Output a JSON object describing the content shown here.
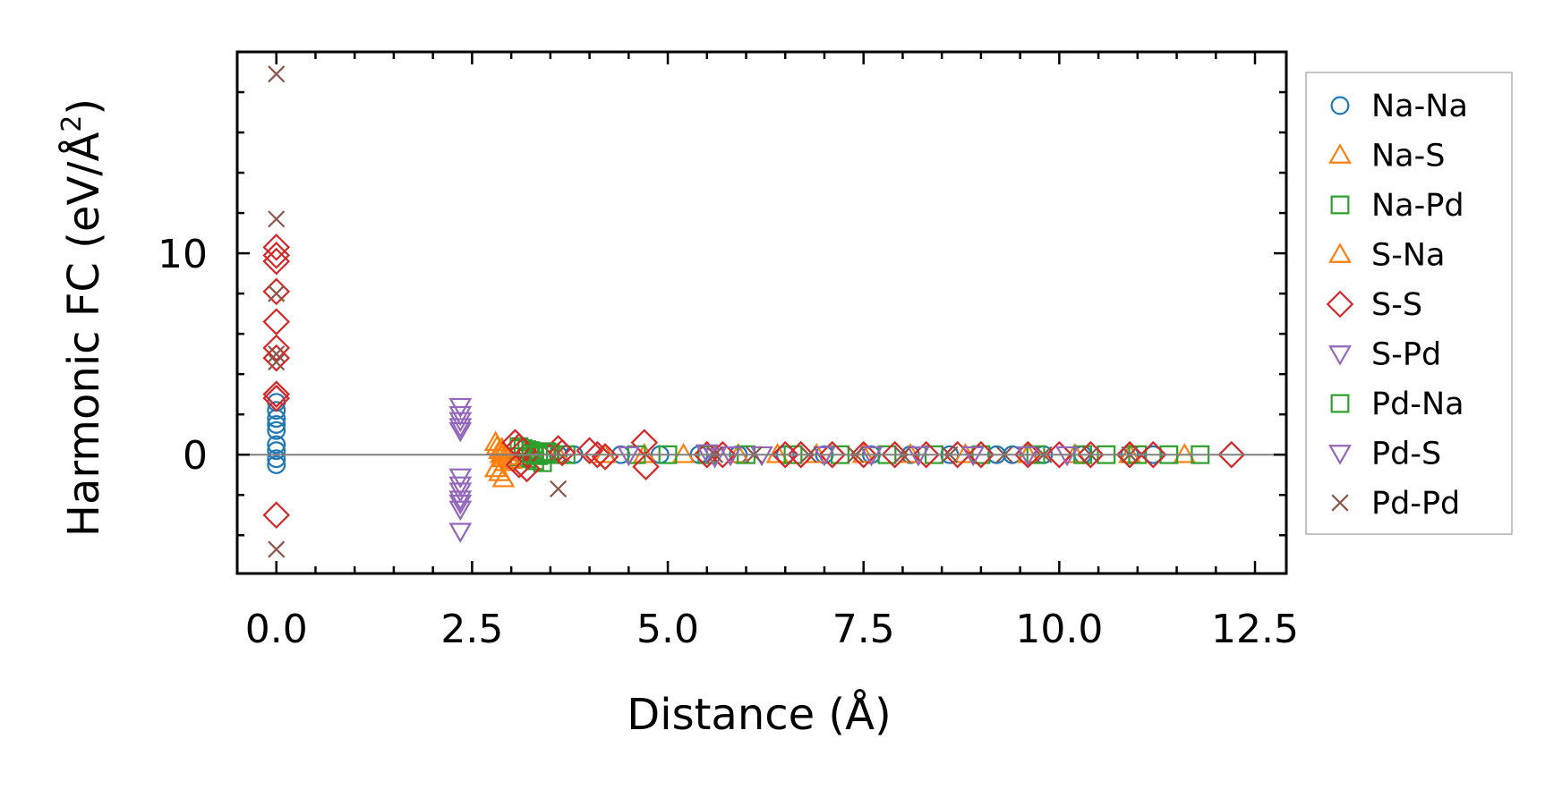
{
  "chart_data": {
    "type": "scatter",
    "title": "",
    "xlabel": "Distance (Å)",
    "ylabel_main": "Harmonic FC (eV/Å",
    "ylabel_sup": "2",
    "ylabel_close": ")",
    "xlim": [
      -0.5,
      12.9
    ],
    "ylim": [
      -5.9,
      20.0
    ],
    "xticks": [
      0.0,
      2.5,
      5.0,
      7.5,
      10.0,
      12.5
    ],
    "xtick_labels": [
      "0.0",
      "2.5",
      "5.0",
      "7.5",
      "10.0",
      "12.5"
    ],
    "yticks": [
      0,
      10
    ],
    "ytick_labels": [
      "0",
      "10"
    ],
    "x_minor_step": 0.5,
    "y_minor_step": 2,
    "zero_line": true,
    "grid": false,
    "legend_position": "outside-right",
    "series": [
      {
        "name": "Na-Na",
        "marker": "circle",
        "color": "#1f77b4",
        "x": [
          0,
          0,
          0,
          0,
          0,
          0,
          0,
          0,
          0,
          3.3,
          3.6,
          3.8,
          4.4,
          4.9,
          5.4,
          5.9,
          6.5,
          7.0,
          7.6,
          8.1,
          8.6,
          9.2,
          9.4,
          9.8,
          10.3,
          10.9,
          11.2
        ],
        "y": [
          2.6,
          2.2,
          1.8,
          1.5,
          1.2,
          0.5,
          0.2,
          -0.2,
          -0.5,
          0.1,
          0,
          0,
          0,
          0,
          0,
          0,
          0,
          0,
          0,
          0,
          0,
          0,
          0,
          0,
          0,
          0,
          0
        ]
      },
      {
        "name": "Na-S",
        "marker": "triangle-up",
        "color": "#ff7f0e",
        "x": [
          2.8,
          2.82,
          2.85,
          2.87,
          2.9,
          2.92,
          2.8,
          2.85,
          2.9,
          3.3,
          3.6,
          4.2,
          4.7,
          5.2,
          5.9,
          6.4,
          6.9,
          7.5,
          8.1,
          8.8,
          9.6,
          10.2,
          10.9,
          11.6
        ],
        "y": [
          0.6,
          0.4,
          0.2,
          0,
          -0.2,
          -0.4,
          -0.7,
          -0.9,
          -1.2,
          0,
          0,
          0,
          0,
          0,
          0,
          0,
          0,
          0,
          0,
          0,
          0,
          0,
          0,
          0
        ]
      },
      {
        "name": "Na-Pd",
        "marker": "square",
        "color": "#2ca02c",
        "x": [
          3.1,
          3.15,
          3.2,
          3.25,
          3.3,
          3.35,
          3.4,
          3.45,
          3.1,
          3.2,
          3.3,
          3.4,
          3.5,
          3.7,
          4.6,
          5.0,
          5.5,
          6.0,
          6.6,
          7.2,
          7.8,
          8.4,
          9.0,
          9.7,
          10.3,
          10.6,
          11.0,
          11.4,
          11.8
        ],
        "y": [
          0.4,
          0.3,
          0.25,
          0.2,
          0.15,
          0.1,
          0.05,
          0,
          -0.1,
          -0.2,
          -0.3,
          -0.4,
          0.1,
          0,
          0,
          0,
          0,
          0,
          0,
          0,
          0,
          0,
          0,
          0,
          0,
          0,
          0,
          0,
          0
        ]
      },
      {
        "name": "S-Na",
        "marker": "triangle-up",
        "color": "#ff7f0e",
        "x": [
          2.88,
          2.9,
          2.95,
          3.0
        ],
        "y": [
          0.3,
          0.1,
          -0.1,
          -0.3
        ]
      },
      {
        "name": "S-S",
        "marker": "diamond",
        "color": "#d62728",
        "x": [
          0,
          0,
          0,
          0,
          0,
          0,
          0,
          0,
          0,
          0,
          3.05,
          3.1,
          3.15,
          3.2,
          3.1,
          3.2,
          3.6,
          3.65,
          4.0,
          4.1,
          4.2,
          4.7,
          4.72,
          5.5,
          5.7,
          6.5,
          6.7,
          7.1,
          7.5,
          7.9,
          8.3,
          8.7,
          9.0,
          9.6,
          10.0,
          10.4,
          10.9,
          11.2,
          12.2
        ],
        "y": [
          10.3,
          9.9,
          9.6,
          8.1,
          6.6,
          5.3,
          4.8,
          3.0,
          2.8,
          -3.0,
          0.6,
          0.4,
          0.2,
          0,
          -0.5,
          -0.7,
          0.3,
          0.1,
          0.2,
          0,
          -0.1,
          0.6,
          -0.6,
          0,
          0,
          0,
          0,
          0,
          0,
          0,
          0,
          0,
          0,
          0,
          0,
          0,
          0,
          0,
          0
        ]
      },
      {
        "name": "S-Pd",
        "marker": "triangle-down",
        "color": "#9467bd",
        "x": [
          2.35,
          2.35,
          2.35,
          2.35,
          2.35,
          2.35,
          2.35,
          2.35,
          2.35,
          2.35,
          4.5,
          5.5,
          5.6,
          5.8,
          6.2,
          7.0,
          7.6,
          8.2,
          8.9,
          9.6,
          10.1
        ],
        "y": [
          2.4,
          2.0,
          1.7,
          1.4,
          -1.1,
          -1.5,
          -1.8,
          -2.4,
          -2.7,
          -3.8,
          0,
          0.1,
          -0.1,
          0,
          0,
          0,
          0,
          0,
          0,
          0,
          0
        ]
      },
      {
        "name": "Pd-Na",
        "marker": "square",
        "color": "#2ca02c",
        "x": [
          3.25,
          3.35,
          3.45
        ],
        "y": [
          0.05,
          -0.05,
          0.15
        ]
      },
      {
        "name": "Pd-S",
        "marker": "triangle-down",
        "color": "#9467bd",
        "x": [
          2.35,
          2.35
        ],
        "y": [
          1.2,
          -2.2
        ]
      },
      {
        "name": "Pd-Pd",
        "marker": "cross",
        "color": "#8c564b",
        "x": [
          0,
          0,
          0,
          0,
          0,
          0,
          3.6,
          3.6,
          5.6,
          6.1,
          6.8,
          7.4,
          8.0,
          8.6,
          9.3,
          9.8,
          10.4,
          10.9
        ],
        "y": [
          18.9,
          11.7,
          8.0,
          5.0,
          4.6,
          -4.7,
          0.1,
          -1.7,
          0,
          0,
          0,
          0,
          0,
          0,
          0,
          0,
          0,
          0
        ]
      }
    ]
  }
}
